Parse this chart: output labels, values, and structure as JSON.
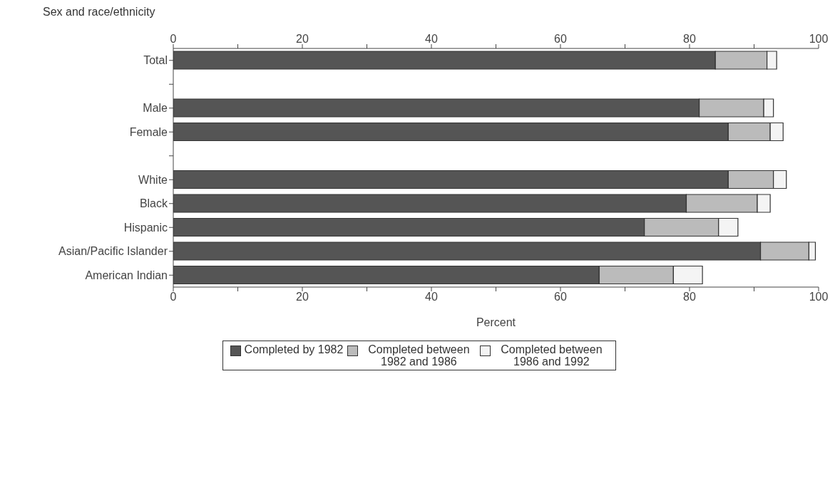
{
  "chart_data": {
    "type": "bar",
    "orientation": "horizontal",
    "stacked": true,
    "ylabel": "Sex and race/ethnicity",
    "xlabel": "Percent",
    "categories": [
      "Total",
      null,
      "Male",
      "Female",
      null,
      "White",
      "Black",
      "Hispanic",
      "Asian/Pacific Islander",
      "American Indian"
    ],
    "series": [
      {
        "name": "Completed by 1982",
        "color": "#555555",
        "values": [
          84,
          null,
          81.5,
          86,
          null,
          86,
          79.5,
          73,
          91,
          66
        ]
      },
      {
        "name": "Completed between 1982 and 1986",
        "color": "#bbbbbb",
        "values": [
          8,
          null,
          10,
          6.5,
          null,
          7,
          11,
          11.5,
          7.5,
          11.5
        ]
      },
      {
        "name": "Completed between 1986 and 1992",
        "color": "#f4f4f4",
        "values": [
          1.5,
          null,
          1.5,
          2,
          null,
          2,
          2,
          3,
          1,
          4.5
        ]
      }
    ],
    "xlim": [
      0,
      100
    ],
    "xticks": [
      0,
      {
        "value": 10,
        "label": null
      },
      20,
      {
        "value": 30,
        "label": null
      },
      40,
      {
        "value": 50,
        "label": null
      },
      60,
      {
        "value": 70,
        "label": null
      },
      80,
      {
        "value": 90,
        "label": null
      },
      100
    ],
    "x2lim": [
      0,
      100
    ],
    "x2ticks": [
      0,
      {
        "value": 10,
        "label": null
      },
      20,
      {
        "value": 30,
        "label": null
      },
      40,
      {
        "value": 50,
        "label": null
      },
      60,
      {
        "value": 70,
        "label": null
      },
      80,
      {
        "value": 90,
        "label": null
      },
      100
    ],
    "legend": "bottom"
  }
}
